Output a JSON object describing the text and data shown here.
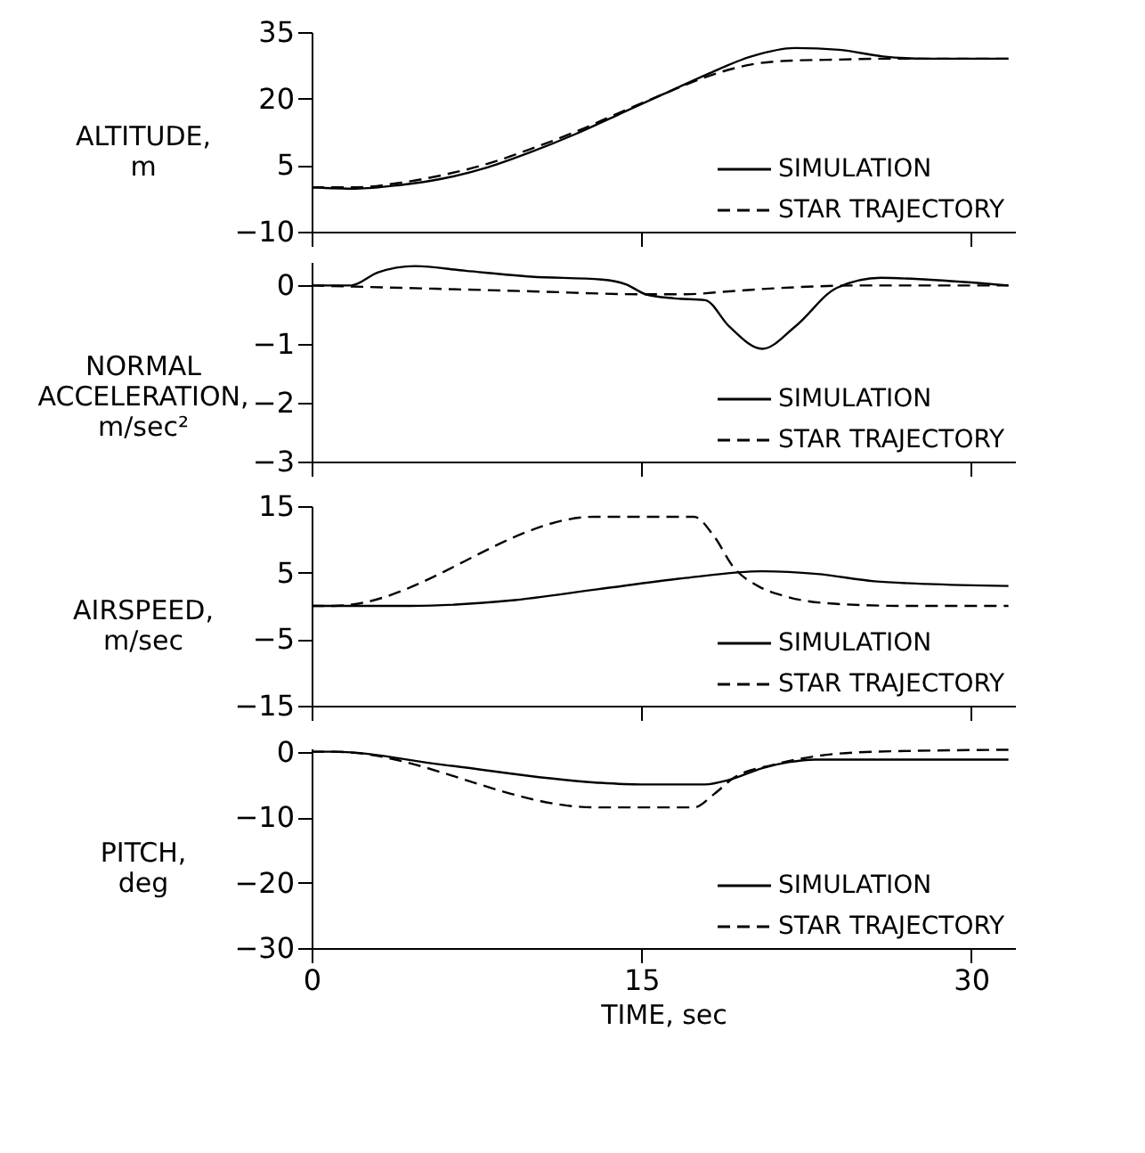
{
  "chart_data": [
    {
      "type": "line",
      "ylabel": "ALTITUDE,\nm",
      "xlim": [
        0,
        32
      ],
      "xticks": [
        0,
        15,
        30
      ],
      "ylim": [
        -10,
        35
      ],
      "yticks": [
        -10,
        5,
        20,
        35
      ],
      "tick_labels": "y",
      "legend": "bottom right",
      "grid": false,
      "series": [
        {
          "name": "SIMULATION",
          "color": "#000000",
          "line_style": "solid",
          "x": [
            0,
            2,
            4,
            6,
            8,
            10,
            12,
            14,
            16,
            18,
            20,
            22,
            24,
            26,
            28,
            31.7
          ],
          "values": [
            0,
            -0.3,
            0.5,
            2,
            4.5,
            8,
            12,
            16.5,
            21,
            25.5,
            29.5,
            31.4,
            31,
            29.5,
            29,
            29
          ]
        },
        {
          "name": "STAR TRAJECTORY",
          "color": "#000000",
          "line_style": "dashed",
          "x": [
            0,
            2,
            4,
            6,
            8,
            10,
            12,
            14,
            16,
            18,
            20,
            22,
            24,
            26,
            28,
            31.7
          ],
          "values": [
            0,
            0,
            1,
            2.8,
            5.3,
            8.7,
            12.5,
            16.8,
            21,
            25,
            27.7,
            28.6,
            28.8,
            29,
            29,
            29
          ]
        }
      ]
    },
    {
      "type": "line",
      "ylabel": "NORMAL\nACCELERATION,\nm/sec²",
      "xlim": [
        0,
        32
      ],
      "xticks": [
        0,
        15,
        30
      ],
      "ylim": [
        -3,
        0.4
      ],
      "yticks": [
        -3,
        -2,
        -1,
        0
      ],
      "tick_labels": "y",
      "legend": "bottom right",
      "grid": false,
      "series": [
        {
          "name": "SIMULATION",
          "color": "#000000",
          "line_style": "solid",
          "x": [
            0,
            1.8,
            3,
            4.7,
            7,
            10,
            13.2,
            14.3,
            15.2,
            16.5,
            17.9,
            19,
            20.5,
            22,
            23.9,
            25.9,
            28,
            31.7
          ],
          "values": [
            0,
            0,
            0.22,
            0.33,
            0.25,
            0.15,
            0.1,
            0.02,
            -0.15,
            -0.22,
            -0.25,
            -0.7,
            -1.08,
            -0.7,
            -0.04,
            0.13,
            0.1,
            0
          ]
        },
        {
          "name": "STAR TRAJECTORY",
          "color": "#000000",
          "line_style": "dashed",
          "x": [
            0,
            5,
            10,
            15,
            17,
            19,
            21,
            25,
            31.7
          ],
          "values": [
            0,
            -0.05,
            -0.1,
            -0.15,
            -0.15,
            -0.1,
            -0.05,
            0,
            0
          ]
        }
      ]
    },
    {
      "type": "line",
      "ylabel": "AIRSPEED,\nm/sec",
      "xlim": [
        0,
        32
      ],
      "xticks": [
        0,
        15,
        30
      ],
      "ylim": [
        -15,
        15
      ],
      "yticks": [
        -15,
        -5,
        5,
        15
      ],
      "tick_labels": "y",
      "legend": "bottom right",
      "grid": false,
      "series": [
        {
          "name": "SIMULATION",
          "color": "#000000",
          "line_style": "solid",
          "x": [
            0,
            4.5,
            9,
            13,
            17,
            20.5,
            23,
            25.6,
            28,
            31.7
          ],
          "values": [
            0,
            0,
            0.8,
            2.5,
            4.2,
            5.2,
            4.8,
            3.7,
            3.3,
            3
          ]
        },
        {
          "name": "STAR TRAJECTORY",
          "color": "#000000",
          "line_style": "dashed",
          "x": [
            0,
            1,
            12.9,
            17.4,
            18.3,
            19.2,
            20.3,
            21.6,
            23.9,
            27,
            31.7
          ],
          "values": [
            0,
            0,
            13.4,
            13.4,
            10.5,
            5.8,
            3,
            1.4,
            0.3,
            0,
            0
          ]
        }
      ]
    },
    {
      "type": "line",
      "ylabel": "PITCH,\ndeg",
      "xlabel": "TIME, sec",
      "xlim": [
        0,
        32
      ],
      "xticks": [
        0,
        15,
        30
      ],
      "ylim": [
        -30,
        0.5
      ],
      "yticks": [
        -30,
        -20,
        -10,
        0
      ],
      "legend": "bottom right",
      "grid": false,
      "series": [
        {
          "name": "SIMULATION",
          "color": "#000000",
          "line_style": "solid",
          "x": [
            0,
            1,
            6,
            12.9,
            15,
            17.9,
            19,
            20.5,
            21.7,
            22.9,
            25,
            31.7
          ],
          "values": [
            0,
            0,
            -2,
            -4.7,
            -5,
            -5,
            -4.3,
            -2.5,
            -1.6,
            -1.2,
            -1.2,
            -1.2
          ]
        },
        {
          "name": "STAR TRAJECTORY",
          "color": "#000000",
          "line_style": "dashed",
          "x": [
            0,
            1,
            12.9,
            17.4,
            18.3,
            19.2,
            21,
            22.9,
            25.6,
            31.7
          ],
          "values": [
            0,
            0,
            -8.5,
            -8.5,
            -6.5,
            -4,
            -2,
            -0.7,
            0,
            0.3
          ]
        }
      ]
    }
  ]
}
